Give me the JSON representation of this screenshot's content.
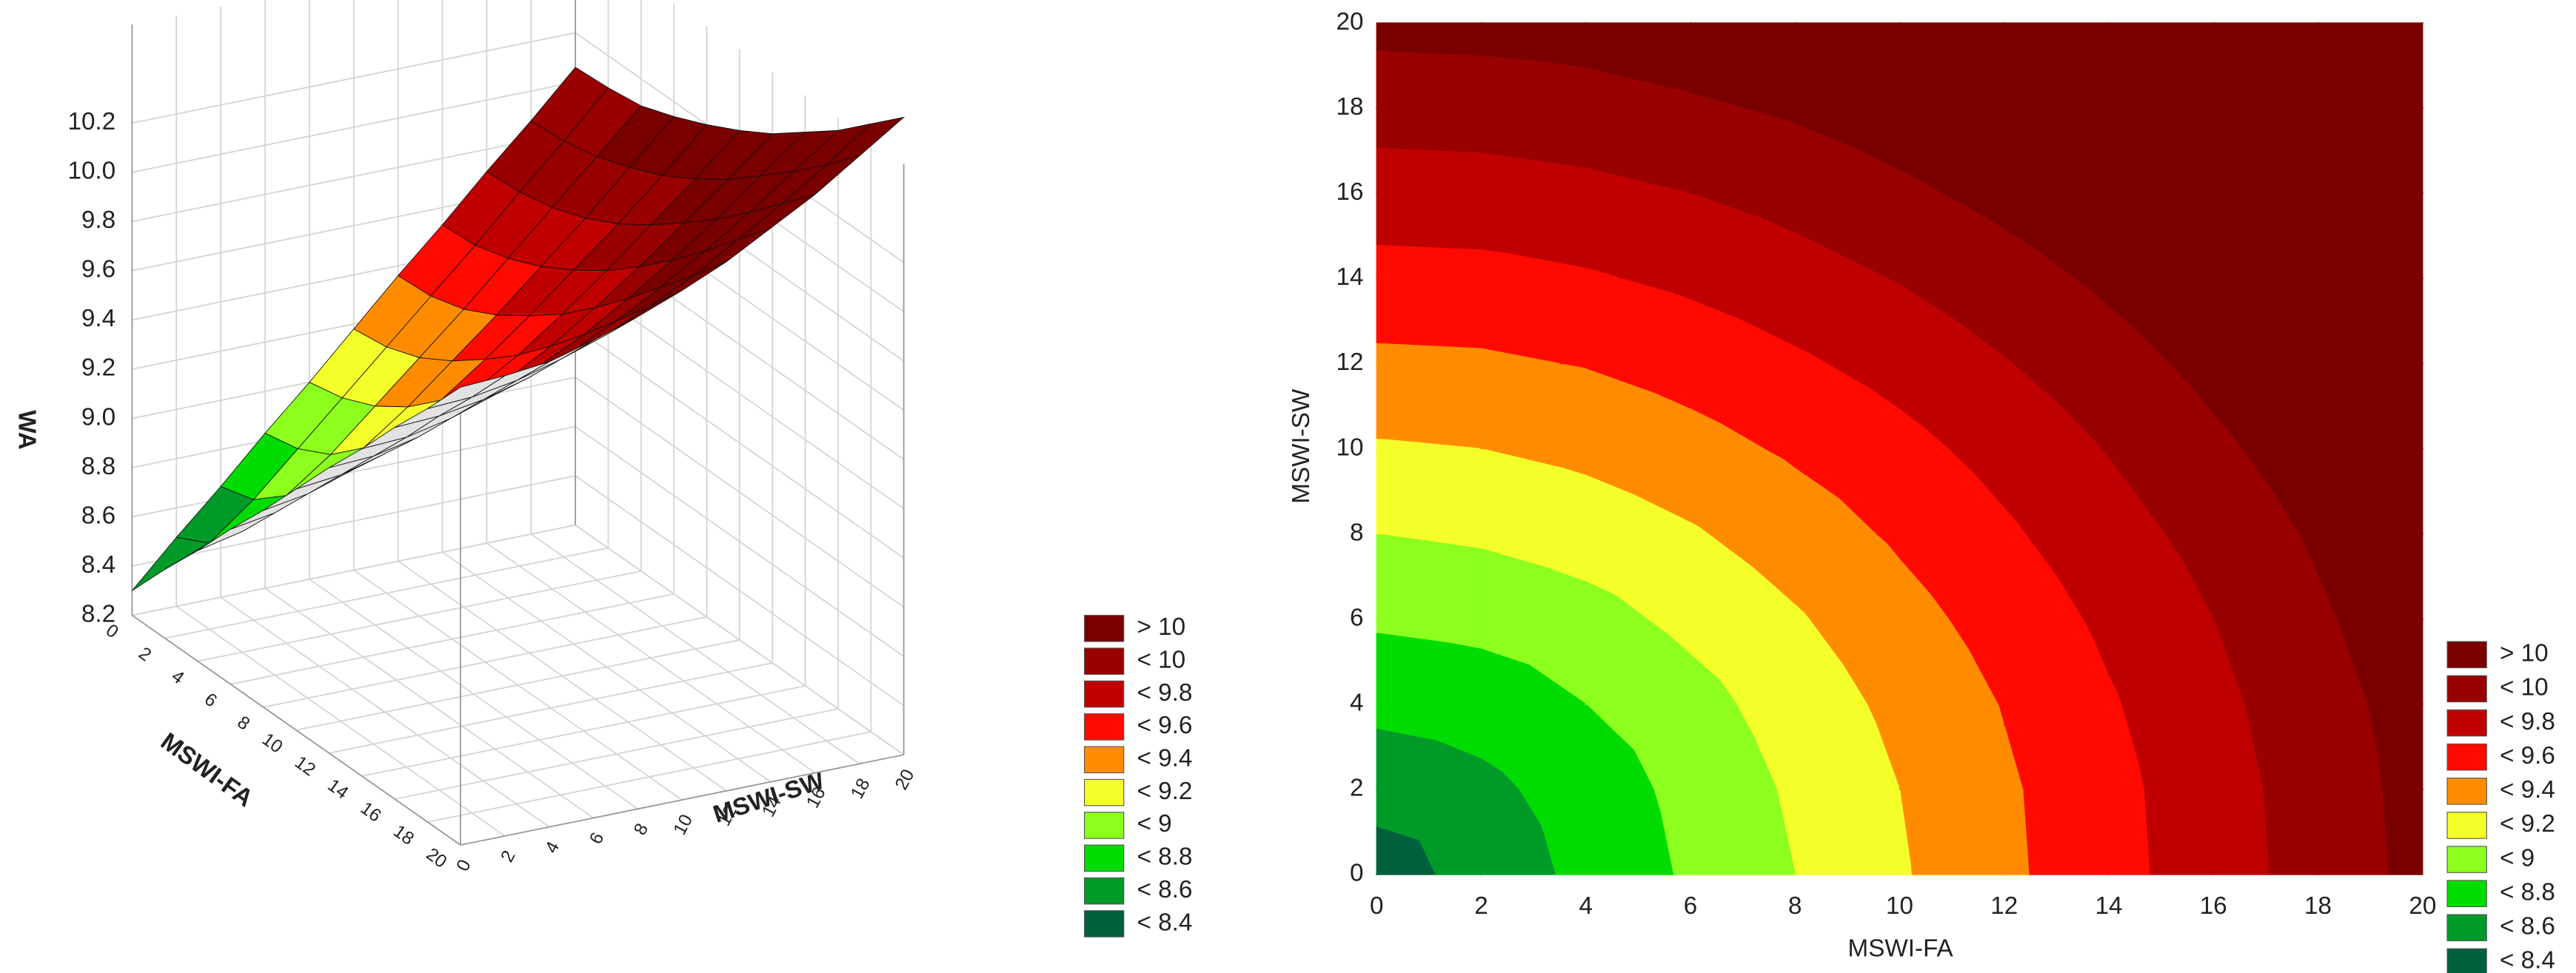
{
  "chart_data": [
    {
      "type": "surface",
      "xlabel": "MSWI-FA",
      "ylabel": "MSWI-SW",
      "zlabel": "WA",
      "x": [
        0,
        2,
        4,
        6,
        8,
        10,
        12,
        14,
        16,
        18,
        20
      ],
      "y": [
        0,
        2,
        4,
        6,
        8,
        10,
        12,
        14,
        16,
        18,
        20
      ],
      "z": [
        [
          8.3,
          8.48,
          8.65,
          8.83,
          9.0,
          9.18,
          9.36,
          9.53,
          9.71,
          9.88,
          10.06
        ],
        [
          8.48,
          8.55,
          8.69,
          8.86,
          9.03,
          9.2,
          9.37,
          9.54,
          9.72,
          9.89,
          10.07
        ],
        [
          8.65,
          8.69,
          8.8,
          8.93,
          9.09,
          9.25,
          9.41,
          9.58,
          9.75,
          9.92,
          10.09
        ],
        [
          8.83,
          8.86,
          8.93,
          9.05,
          9.18,
          9.33,
          9.48,
          9.64,
          9.8,
          9.97,
          10.14
        ],
        [
          9.0,
          9.03,
          9.09,
          9.18,
          9.3,
          9.43,
          9.57,
          9.72,
          9.87,
          10.03,
          10.2
        ],
        [
          9.18,
          9.2,
          9.25,
          9.33,
          9.43,
          9.54,
          9.67,
          9.81,
          9.96,
          10.11,
          10.27
        ],
        [
          9.36,
          9.37,
          9.41,
          9.48,
          9.57,
          9.67,
          9.79,
          9.92,
          10.06,
          10.2,
          10.35
        ],
        [
          9.53,
          9.54,
          9.58,
          9.64,
          9.72,
          9.81,
          9.92,
          10.04,
          10.17,
          10.31,
          10.45
        ],
        [
          9.71,
          9.72,
          9.75,
          9.8,
          9.87,
          9.96,
          10.06,
          10.17,
          10.29,
          10.42,
          10.55
        ],
        [
          9.88,
          9.89,
          9.92,
          9.97,
          10.03,
          10.11,
          10.2,
          10.31,
          10.42,
          10.54,
          10.67
        ],
        [
          10.06,
          10.07,
          10.09,
          10.14,
          10.2,
          10.27,
          10.35,
          10.45,
          10.55,
          10.67,
          10.79
        ]
      ],
      "xlim": [
        0,
        20
      ],
      "xticks": [
        0,
        2,
        4,
        6,
        8,
        10,
        12,
        14,
        16,
        18,
        20
      ],
      "ylim": [
        0,
        20
      ],
      "yticks": [
        0,
        2,
        4,
        6,
        8,
        10,
        12,
        14,
        16,
        18,
        20
      ],
      "zlim": [
        8.2,
        10.6
      ],
      "zticks": [
        8.2,
        8.4,
        8.6,
        8.8,
        {
          "value": 9,
          "label": "9.0"
        },
        9.2,
        9.4,
        9.6,
        9.8,
        {
          "value": 10,
          "label": "10.0"
        },
        10.2
      ],
      "grid": true,
      "legend": [
        {
          "label": "> 10",
          "value": 10,
          "color": "#7a0000"
        },
        {
          "label": "< 10",
          "value": 10,
          "color": "#990000"
        },
        {
          "label": "< 9.8",
          "value": 9.8,
          "color": "#c00000"
        },
        {
          "label": "< 9.6",
          "value": 9.6,
          "color": "#ff0a00"
        },
        {
          "label": "< 9.4",
          "value": 9.4,
          "color": "#ff8c00"
        },
        {
          "label": "< 9.2",
          "value": 9.2,
          "color": "#f4ff2a"
        },
        {
          "label": "< 9",
          "value": 9,
          "color": "#8cff1e"
        },
        {
          "label": "< 8.8",
          "value": 8.8,
          "color": "#00dc00"
        },
        {
          "label": "< 8.6",
          "value": 8.6,
          "color": "#009a28"
        },
        {
          "label": "< 8.4",
          "value": 8.4,
          "color": "#00603c"
        }
      ]
    },
    {
      "type": "contour",
      "xlabel": "MSWI-FA",
      "ylabel": "MSWI-SW",
      "x": [
        0,
        2,
        4,
        6,
        8,
        10,
        12,
        14,
        16,
        18,
        20
      ],
      "y": [
        0,
        2,
        4,
        6,
        8,
        10,
        12,
        14,
        16,
        18,
        20
      ],
      "z": [
        [
          8.3,
          8.48,
          8.65,
          8.83,
          9.0,
          9.18,
          9.36,
          9.53,
          9.71,
          9.88,
          10.06
        ],
        [
          8.48,
          8.55,
          8.69,
          8.86,
          9.03,
          9.2,
          9.37,
          9.54,
          9.72,
          9.89,
          10.07
        ],
        [
          8.65,
          8.69,
          8.8,
          8.93,
          9.09,
          9.25,
          9.41,
          9.58,
          9.75,
          9.92,
          10.09
        ],
        [
          8.83,
          8.86,
          8.93,
          9.05,
          9.18,
          9.33,
          9.48,
          9.64,
          9.8,
          9.97,
          10.14
        ],
        [
          9.0,
          9.03,
          9.09,
          9.18,
          9.3,
          9.43,
          9.57,
          9.72,
          9.87,
          10.03,
          10.2
        ],
        [
          9.18,
          9.2,
          9.25,
          9.33,
          9.43,
          9.54,
          9.67,
          9.81,
          9.96,
          10.11,
          10.27
        ],
        [
          9.36,
          9.37,
          9.41,
          9.48,
          9.57,
          9.67,
          9.79,
          9.92,
          10.06,
          10.2,
          10.35
        ],
        [
          9.53,
          9.54,
          9.58,
          9.64,
          9.72,
          9.81,
          9.92,
          10.04,
          10.17,
          10.31,
          10.45
        ],
        [
          9.71,
          9.72,
          9.75,
          9.8,
          9.87,
          9.96,
          10.06,
          10.17,
          10.29,
          10.42,
          10.55
        ],
        [
          9.88,
          9.89,
          9.92,
          9.97,
          10.03,
          10.11,
          10.2,
          10.31,
          10.42,
          10.54,
          10.67
        ],
        [
          10.06,
          10.07,
          10.09,
          10.14,
          10.2,
          10.27,
          10.35,
          10.45,
          10.55,
          10.67,
          10.79
        ]
      ],
      "xlim": [
        0,
        20
      ],
      "xticks": [
        0,
        2,
        4,
        6,
        8,
        10,
        12,
        14,
        16,
        18,
        20
      ],
      "ylim": [
        0,
        20
      ],
      "yticks": [
        0,
        2,
        4,
        6,
        8,
        10,
        12,
        14,
        16,
        18,
        20
      ],
      "legend": [
        {
          "label": "> 10",
          "value": 10,
          "color": "#7a0000"
        },
        {
          "label": "< 10",
          "value": 10,
          "color": "#990000"
        },
        {
          "label": "< 9.8",
          "value": 9.8,
          "color": "#c00000"
        },
        {
          "label": "< 9.6",
          "value": 9.6,
          "color": "#ff0a00"
        },
        {
          "label": "< 9.4",
          "value": 9.4,
          "color": "#ff8c00"
        },
        {
          "label": "< 9.2",
          "value": 9.2,
          "color": "#f4ff2a"
        },
        {
          "label": "< 9",
          "value": 9,
          "color": "#8cff1e"
        },
        {
          "label": "< 8.8",
          "value": 8.8,
          "color": "#00dc00"
        },
        {
          "label": "< 8.6",
          "value": 8.6,
          "color": "#009a28"
        },
        {
          "label": "< 8.4",
          "value": 8.4,
          "color": "#00603c"
        }
      ]
    }
  ]
}
